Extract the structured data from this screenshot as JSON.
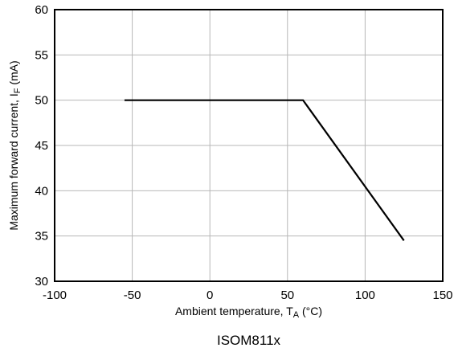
{
  "chart_data": {
    "type": "line",
    "title": "",
    "caption": "ISOM811x",
    "xlabel": {
      "main": "Ambient temperature, T",
      "sub": "A",
      "unit": " (°C)"
    },
    "ylabel": {
      "main": "Maximum forward current, I",
      "sub": "F",
      "unit": " (mA)"
    },
    "xlim": [
      -100,
      150
    ],
    "ylim": [
      30,
      60
    ],
    "xticks": [
      -100,
      -50,
      0,
      50,
      100,
      150
    ],
    "yticks": [
      30,
      35,
      40,
      45,
      50,
      55,
      60
    ],
    "grid": true,
    "legend": "none",
    "series": [
      {
        "x": [
          -55,
          60,
          125
        ],
        "y": [
          50,
          50,
          34.5
        ]
      }
    ]
  }
}
